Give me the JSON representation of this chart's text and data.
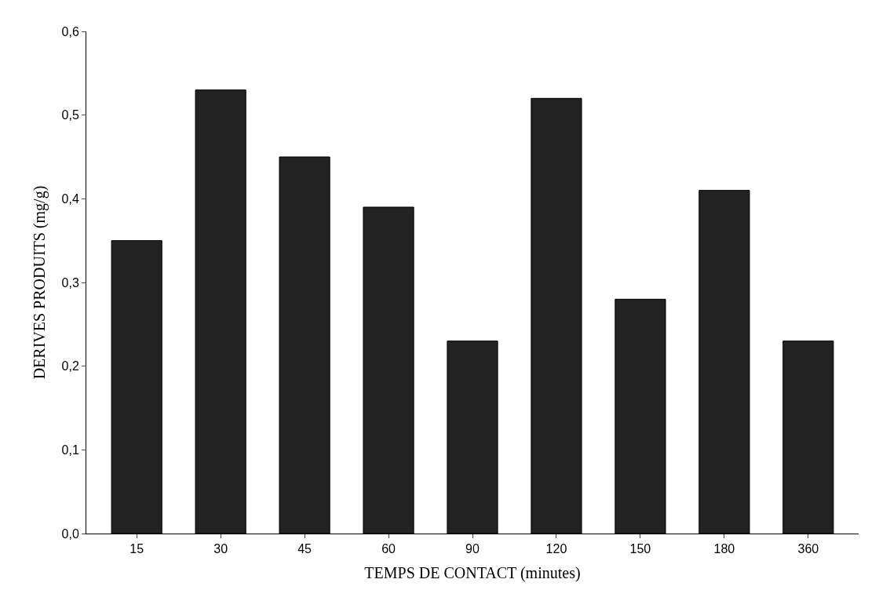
{
  "chart_data": {
    "type": "bar",
    "xlabel": "TEMPS DE CONTACT (minutes)",
    "ylabel": "DERIVES PRODUITS (mg/g)",
    "categories": [
      "15",
      "30",
      "45",
      "60",
      "90",
      "120",
      "150",
      "180",
      "360"
    ],
    "values": [
      0.35,
      0.53,
      0.45,
      0.39,
      0.23,
      0.52,
      0.28,
      0.41,
      0.23
    ],
    "color": "#222222",
    "ylim": [
      0,
      0.6
    ],
    "yticks": [
      {
        "value": 0,
        "label": "0,0"
      },
      {
        "value": 0.1,
        "label": "0,1"
      },
      {
        "value": 0.2,
        "label": "0,2"
      },
      {
        "value": 0.3,
        "label": "0,3"
      },
      {
        "value": 0.4,
        "label": "0,4"
      },
      {
        "value": 0.5,
        "label": "0,5"
      },
      {
        "value": 0.6,
        "label": "0,6"
      }
    ]
  }
}
